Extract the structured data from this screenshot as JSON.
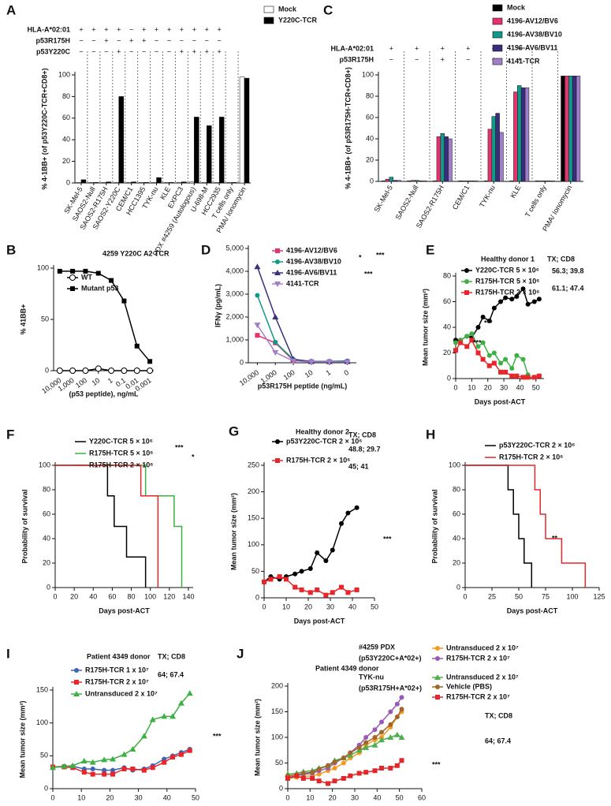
{
  "chart_data": [
    {
      "type": "bar",
      "label": "A",
      "ylabel": "% 4-1BB+ (of p53Y220C-TCR+CD8+)",
      "ylim": [
        0,
        100
      ],
      "yticks": [
        0,
        20,
        40,
        60,
        80,
        100
      ],
      "categories": [
        "SK-Mel-5",
        "SAOS2-Null",
        "SAOS2-R175H",
        "SAOS2-Y220C",
        "CEM/C1",
        "HCC1395",
        "TYK-nu",
        "KLE",
        "EXPC3",
        "PDX #4259 (Autologous)",
        "U-698-M",
        "HCC2935",
        "T cells only",
        "PMA/ Ionomycin"
      ],
      "header_rows": [
        {
          "label": "HLA-A*02:01",
          "marks": [
            "+",
            "+",
            "+",
            "+",
            "−",
            "+",
            "+",
            "+",
            "+",
            "+",
            "+",
            "+",
            null,
            null
          ]
        },
        {
          "label": "p53R175H",
          "marks": [
            "−",
            "−",
            "+",
            "−",
            "+",
            "+",
            "−",
            "−",
            "−",
            "−",
            "−",
            "−",
            null,
            null
          ]
        },
        {
          "label": "p53Y220C",
          "marks": [
            "−",
            "−",
            "−",
            "+",
            "−",
            "−",
            "−",
            "−",
            "+",
            "+",
            "+",
            "+",
            null,
            null
          ]
        }
      ],
      "series": [
        {
          "name": "Mock",
          "color": "#ffffff",
          "values": [
            0.5,
            0.5,
            0.5,
            0.5,
            0.5,
            0.5,
            0.5,
            0.5,
            0.5,
            1,
            0.5,
            0.5,
            0.5,
            98
          ]
        },
        {
          "name": "Y220C-TCR",
          "color": "#000000",
          "values": [
            3,
            0.5,
            1,
            80,
            1,
            0.5,
            5,
            0.5,
            1,
            61,
            53,
            61,
            0.5,
            97
          ]
        }
      ]
    },
    {
      "type": "line",
      "label": "B",
      "title": "4259 Y220C A2 TCR",
      "xlabel": "(p53 peptide), ng/mL",
      "ylabel": "% 41BB+",
      "xscale": "log",
      "xlim": [
        30000,
        0.0005
      ],
      "xticks": [
        {
          "value": 10000,
          "label": "10,000"
        },
        {
          "value": 1000,
          "label": "1,000"
        },
        100,
        10,
        1,
        0.1,
        0.01,
        0.001
      ],
      "ylim": [
        0,
        100
      ],
      "yticks": [
        0,
        50,
        100
      ],
      "x": [
        10000,
        1000,
        100,
        10,
        1,
        0.1,
        0.01,
        0.001
      ],
      "series": [
        {
          "name": "WT",
          "color": "#000000",
          "marker": "open-circle",
          "values": [
            0,
            0,
            0,
            2,
            0,
            0,
            0,
            0
          ]
        },
        {
          "name": "Mutant p53",
          "color": "#000000",
          "marker": "square",
          "values": [
            97,
            97,
            97,
            95,
            88,
            68,
            24,
            9
          ]
        }
      ]
    },
    {
      "type": "bar",
      "label": "C",
      "ylabel": "% 4-1BB+ (of p53R175H-TCR+CD8+)",
      "ylim": [
        0,
        100
      ],
      "yticks": [
        0,
        20,
        40,
        60,
        80,
        100
      ],
      "categories": [
        "SK-Mel-5",
        "SAOS2-Null",
        "SAOS2-R175H",
        "CEM/C1",
        "TYK-nu",
        "KLE",
        "T cells only",
        "PMA/ Ionomycin"
      ],
      "header_rows": [
        {
          "label": "HLA-A*02:01",
          "marks": [
            "+",
            "+",
            "+",
            "+",
            "+",
            "+",
            null,
            null
          ]
        },
        {
          "label": "p53R175H",
          "marks": [
            "−",
            "−",
            "+",
            "−",
            "+",
            "+",
            null,
            null
          ]
        }
      ],
      "series": [
        {
          "name": "Mock",
          "color": "#000000",
          "values": [
            0.5,
            0.5,
            0.5,
            0.5,
            0.5,
            0.5,
            0.5,
            99
          ]
        },
        {
          "name": "4196-AV12/BV6",
          "color": "#e6336f",
          "values": [
            2,
            1,
            42,
            0.5,
            49,
            84,
            0.5,
            99
          ]
        },
        {
          "name": "4196-AV38/BV10",
          "color": "#13998a",
          "values": [
            4,
            1,
            45,
            0.5,
            61,
            90,
            0.5,
            99
          ]
        },
        {
          "name": "4196-AV6/BV11",
          "color": "#3b2d7e",
          "values": [
            1,
            0.5,
            42,
            0.5,
            64,
            88,
            0.5,
            99
          ]
        },
        {
          "name": "4141-TCR",
          "color": "#a07fc8",
          "values": [
            1,
            0.5,
            40,
            0.5,
            46,
            88,
            0.5,
            99
          ]
        }
      ]
    },
    {
      "type": "line",
      "label": "D",
      "xlabel": "p53R175H peptide (ng/mL)",
      "ylabel": "IFNγ (pg/mL)",
      "ylim": [
        0,
        5000
      ],
      "yticks": [
        0,
        {
          "value": 1000,
          "label": "1,000"
        },
        {
          "value": 2000,
          "label": "2,000"
        },
        {
          "value": 3000,
          "label": "3,000"
        },
        {
          "value": 4000,
          "label": "4,000"
        },
        {
          "value": 5000,
          "label": "5,000"
        }
      ],
      "categories": [
        "10,000",
        "1,000",
        "100",
        "10",
        "1",
        "0"
      ],
      "annotations": [
        "*",
        "***",
        "***"
      ],
      "series": [
        {
          "name": "4196-AV12/BV6",
          "color": "#e6336f",
          "marker": "square",
          "values": [
            1200,
            870,
            100,
            50,
            50,
            50
          ]
        },
        {
          "name": "4196-AV38/BV10",
          "color": "#13998a",
          "marker": "circle",
          "values": [
            2950,
            900,
            150,
            60,
            60,
            80
          ]
        },
        {
          "name": "4196-AV6/BV11",
          "color": "#3b2d7e",
          "marker": "triangle",
          "values": [
            4200,
            2000,
            150,
            50,
            50,
            50
          ]
        },
        {
          "name": "4141-TCR",
          "color": "#a07fc8",
          "marker": "down",
          "values": [
            1650,
            450,
            80,
            40,
            40,
            40
          ]
        }
      ]
    },
    {
      "type": "line",
      "label": "E",
      "title": "Healthy donor 1",
      "xlabel": "Days post-ACT",
      "ylabel": "Mean tumor size (mm²)",
      "xlim": [
        0,
        55
      ],
      "xticks": [
        0,
        10,
        20,
        30,
        40,
        50
      ],
      "ylim": [
        0,
        80
      ],
      "yticks": [
        0,
        20,
        40,
        60,
        80
      ],
      "annotations": [
        "TX; CD8",
        "56.3; 39.8",
        "61.1; 47.4",
        "***",
        "***"
      ],
      "x": [
        0,
        3,
        7,
        10,
        14,
        17,
        21,
        24,
        28,
        31,
        35,
        38,
        42,
        45,
        49,
        52
      ],
      "series": [
        {
          "name": "Y220C-TCR 5 × 10⁶",
          "color": "#000000",
          "marker": "circle",
          "values": [
            30,
            30,
            33,
            32,
            40,
            48,
            45,
            55,
            60,
            63,
            62,
            64,
            70,
            58,
            60,
            62
          ]
        },
        {
          "name": "R175H-TCR 5 × 10⁶",
          "color": "#3cb043",
          "marker": "circle",
          "values": [
            28,
            30,
            33,
            35,
            25,
            28,
            18,
            20,
            12,
            15,
            8,
            18,
            15,
            3,
            null,
            null
          ]
        },
        {
          "name": "R175H-TCR 2 × 10⁶",
          "color": "#e8262a",
          "marker": "square",
          "values": [
            22,
            28,
            25,
            30,
            20,
            15,
            10,
            12,
            5,
            5,
            2,
            2,
            1,
            1,
            1,
            2
          ]
        }
      ]
    },
    {
      "type": "step",
      "label": "F",
      "xlabel": "Days post-ACT",
      "ylabel": "Probability of survival",
      "xlim": [
        0,
        145
      ],
      "xticks": [
        0,
        20,
        40,
        60,
        80,
        100,
        120,
        140
      ],
      "ylim": [
        0,
        100
      ],
      "yticks": [
        0,
        20,
        40,
        60,
        80,
        100
      ],
      "annotations": [
        "***",
        "*"
      ],
      "series": [
        {
          "name": "Y220C-TCR 5 × 10⁶",
          "color": "#000000",
          "x": [
            0,
            55,
            62,
            75,
            95
          ],
          "values": [
            100,
            75,
            50,
            25,
            0
          ]
        },
        {
          "name": "R175H-TCR 5 × 10⁶",
          "color": "#3cb043",
          "x": [
            0,
            95,
            125,
            133
          ],
          "values": [
            100,
            75,
            50,
            0
          ]
        },
        {
          "name": "R175H-TCR 2 × 10⁶",
          "color": "#e8262a",
          "x": [
            0,
            90,
            108
          ],
          "values": [
            100,
            75,
            0
          ]
        }
      ]
    },
    {
      "type": "line",
      "label": "G",
      "title": "Healthy donor 2",
      "xlabel": "Days post-ACT",
      "ylabel": "Mean tumor size (mm²)",
      "xlim": [
        0,
        50
      ],
      "xticks": [
        0,
        10,
        20,
        30,
        40,
        50
      ],
      "ylim": [
        0,
        250
      ],
      "yticks": [
        0,
        50,
        100,
        150,
        200,
        250
      ],
      "annotations": [
        "TX; CD8",
        "48.8; 29.7",
        "45; 41",
        "***"
      ],
      "x": [
        0,
        3,
        7,
        10,
        14,
        17,
        21,
        24,
        28,
        31,
        35,
        38,
        42
      ],
      "series": [
        {
          "name": "p53Y220C-TCR 2 × 10⁶",
          "color": "#000000",
          "marker": "circle",
          "values": [
            30,
            40,
            35,
            40,
            45,
            50,
            55,
            85,
            70,
            90,
            140,
            160,
            170
          ]
        },
        {
          "name": "R175H-TCR 2 × 10⁶",
          "color": "#e8262a",
          "marker": "square",
          "values": [
            30,
            35,
            40,
            35,
            20,
            15,
            10,
            15,
            5,
            10,
            20,
            10,
            15
          ]
        }
      ]
    },
    {
      "type": "step",
      "label": "H",
      "xlabel": "Days post-ACT",
      "ylabel": "Probability of survival",
      "xlim": [
        0,
        125
      ],
      "xticks": [
        0,
        25,
        50,
        75,
        100,
        125
      ],
      "ylim": [
        0,
        100
      ],
      "yticks": [
        0,
        20,
        40,
        60,
        80,
        100
      ],
      "annotations": [
        "**"
      ],
      "series": [
        {
          "name": "p53Y220C-TCR 2 × 10⁶",
          "color": "#000000",
          "x": [
            0,
            40,
            45,
            50,
            55,
            62
          ],
          "values": [
            100,
            80,
            60,
            40,
            20,
            0
          ]
        },
        {
          "name": "R175H-TCR 2 × 10⁶",
          "color": "#e8262a",
          "x": [
            0,
            65,
            70,
            75,
            90,
            112
          ],
          "values": [
            100,
            80,
            60,
            40,
            20,
            0
          ]
        }
      ]
    },
    {
      "type": "line",
      "label": "I",
      "title": "Patient 4349 donor",
      "xlabel": "Days post-ACT",
      "ylabel": "Mean tumor size (mm²)",
      "xlim": [
        0,
        50
      ],
      "xticks": [
        0,
        10,
        20,
        30,
        40,
        50
      ],
      "ylim": [
        0,
        150
      ],
      "yticks": [
        0,
        50,
        100,
        150
      ],
      "annotations": [
        "TX; CD8",
        "64; 67.4",
        "***"
      ],
      "x": [
        0,
        4,
        7,
        11,
        14,
        18,
        21,
        25,
        28,
        32,
        35,
        39,
        42,
        45,
        48
      ],
      "series": [
        {
          "name": "R175H-TCR 1 x 10⁷",
          "color": "#3e64b5",
          "marker": "circle",
          "values": [
            33,
            34,
            34,
            30,
            30,
            28,
            28,
            32,
            28,
            30,
            35,
            45,
            50,
            55,
            60
          ]
        },
        {
          "name": "R175H-TCR 2 x 10⁷",
          "color": "#e8262a",
          "marker": "square",
          "values": [
            33,
            33,
            32,
            25,
            22,
            22,
            22,
            30,
            30,
            28,
            32,
            40,
            48,
            52,
            58
          ]
        },
        {
          "name": "Untransduced 2 x 10⁷",
          "color": "#3cb043",
          "marker": "triangle",
          "values": [
            32,
            34,
            35,
            42,
            40,
            44,
            45,
            52,
            60,
            80,
            105,
            110,
            110,
            130,
            145
          ]
        }
      ]
    },
    {
      "type": "line",
      "label": "J",
      "title": "Patient 4349 donor",
      "xlabel": "Days post-ACT",
      "ylabel": "Mean tumor size (mm²)",
      "xlim": [
        0,
        60
      ],
      "xticks": [
        0,
        10,
        20,
        30,
        40,
        50,
        60
      ],
      "ylim": [
        0,
        200
      ],
      "yticks": [
        0,
        50,
        100,
        150,
        200
      ],
      "annotations": [
        "#4259 PDX",
        "(p53Y220C+A*02+)",
        "TYK-nu",
        "(p53R175H+A*02+)",
        "TX; CD8",
        "64; 67.4",
        "***"
      ],
      "x": [
        0,
        4,
        7,
        11,
        14,
        18,
        21,
        25,
        28,
        32,
        35,
        39,
        42,
        46,
        49,
        51
      ],
      "series": [
        {
          "name": "Untransduced 2 x 10⁷",
          "color": "#f39a1f",
          "marker": "circle",
          "values": [
            20,
            22,
            24,
            25,
            28,
            35,
            40,
            50,
            60,
            70,
            85,
            95,
            100,
            120,
            140,
            150
          ]
        },
        {
          "name": "R175H-TCR 2 x 10⁷",
          "color": "#9b59b6",
          "marker": "circle",
          "values": [
            22,
            25,
            28,
            30,
            35,
            40,
            50,
            60,
            70,
            85,
            100,
            115,
            130,
            150,
            165,
            178
          ]
        },
        {
          "name": "Untransduced 2 x 10⁷",
          "color": "#4caf50",
          "marker": "triangle",
          "values": [
            28,
            30,
            33,
            35,
            40,
            45,
            55,
            60,
            65,
            75,
            80,
            85,
            95,
            100,
            105,
            100
          ]
        },
        {
          "name": "Vehicle (PBS)",
          "color": "#a0662b",
          "marker": "circle",
          "values": [
            25,
            27,
            30,
            32,
            38,
            45,
            52,
            60,
            70,
            80,
            90,
            100,
            110,
            125,
            140,
            155
          ]
        },
        {
          "name": "R175H-TCR 2 x 10⁷",
          "color": "#e3262a",
          "marker": "square",
          "values": [
            20,
            25,
            20,
            20,
            15,
            10,
            15,
            20,
            25,
            30,
            32,
            35,
            40,
            40,
            45,
            55
          ]
        }
      ]
    }
  ]
}
